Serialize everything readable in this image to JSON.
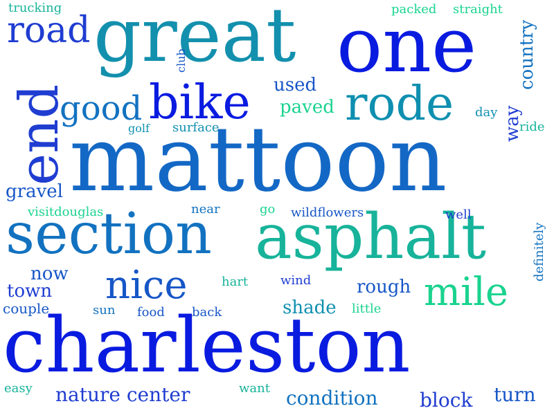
{
  "palette": {
    "blue": "#0a1be0",
    "royal": "#1f3dd1",
    "cobalt": "#1656c7",
    "azure": "#1272c0",
    "teal": "#0f8fb0",
    "cyan": "#109aa8",
    "sea": "#17b39a",
    "mint": "#1ad38f"
  },
  "words": [
    {
      "text": "charleston"
    },
    {
      "text": "mattoon"
    },
    {
      "text": "great"
    },
    {
      "text": "one"
    },
    {
      "text": "section"
    },
    {
      "text": "asphalt"
    },
    {
      "text": "end"
    },
    {
      "text": "bike"
    },
    {
      "text": "rode"
    },
    {
      "text": "road"
    },
    {
      "text": "nice"
    },
    {
      "text": "mile"
    },
    {
      "text": "good"
    },
    {
      "text": "country"
    },
    {
      "text": "trucking"
    },
    {
      "text": "packed"
    },
    {
      "text": "straight"
    },
    {
      "text": "club"
    },
    {
      "text": "used"
    },
    {
      "text": "paved"
    },
    {
      "text": "day"
    },
    {
      "text": "way"
    },
    {
      "text": "ride"
    },
    {
      "text": "golf"
    },
    {
      "text": "surface"
    },
    {
      "text": "gravel"
    },
    {
      "text": "visitdouglas"
    },
    {
      "text": "near"
    },
    {
      "text": "go"
    },
    {
      "text": "wildflowers"
    },
    {
      "text": "well"
    },
    {
      "text": "definitely"
    },
    {
      "text": "now"
    },
    {
      "text": "town"
    },
    {
      "text": "hart"
    },
    {
      "text": "wind"
    },
    {
      "text": "rough"
    },
    {
      "text": "couple"
    },
    {
      "text": "sun"
    },
    {
      "text": "food"
    },
    {
      "text": "back"
    },
    {
      "text": "shade"
    },
    {
      "text": "little"
    },
    {
      "text": "easy"
    },
    {
      "text": "want"
    },
    {
      "text": "nature center"
    },
    {
      "text": "condition"
    },
    {
      "text": "block"
    },
    {
      "text": "turn"
    }
  ]
}
